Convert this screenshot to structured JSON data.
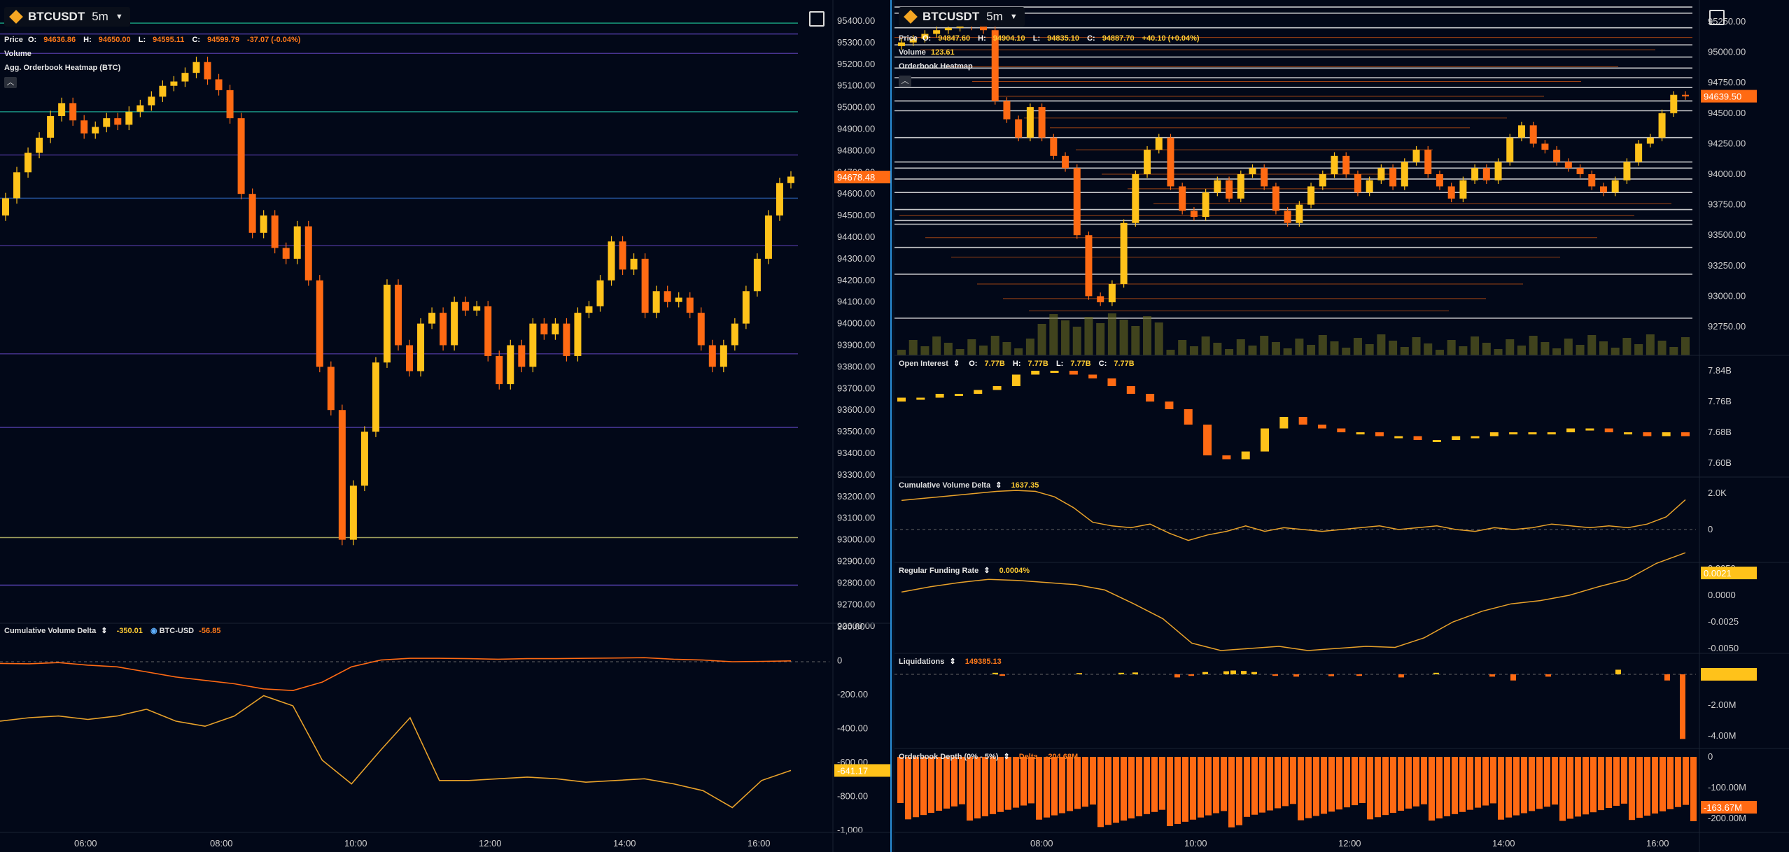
{
  "left": {
    "symbol": "BTCUSDT",
    "timeframe": "5m",
    "price_legend": {
      "label": "Price",
      "o_label": "O:",
      "o": "94636.86",
      "h_label": "H:",
      "h": "94650.00",
      "l_label": "L:",
      "l": "94595.11",
      "c_label": "C:",
      "c": "94599.79",
      "change": "-37.07 (-0.04%)"
    },
    "volume_label": "Volume",
    "heatmap_label": "Agg. Orderbook Heatmap (BTC)",
    "price_axis": [
      "95400.00",
      "95300.00",
      "95200.00",
      "95100.00",
      "95000.00",
      "94900.00",
      "94800.00",
      "94700.00",
      "94600.00",
      "94500.00",
      "94400.00",
      "94300.00",
      "94200.00",
      "94100.00",
      "94000.00",
      "93900.00",
      "93800.00",
      "93700.00",
      "93600.00",
      "93500.00",
      "93400.00",
      "93300.00",
      "93200.00",
      "93100.00",
      "93000.00",
      "92900.00",
      "92800.00",
      "92700.00",
      "92600.00"
    ],
    "current_price": "94678.48",
    "cvd_legend": {
      "label": "Cumulative Volume Delta",
      "v1": "-350.01",
      "v2_label": "BTC-USD",
      "v2": "-56.85"
    },
    "cvd_axis": [
      "200.00",
      "0",
      "-200.00",
      "-400.00",
      "-600.00",
      "-800.00",
      "-1,000"
    ],
    "cvd_current": "-641.17",
    "time_axis": [
      "06:00",
      "08:00",
      "10:00",
      "12:00",
      "14:00",
      "16:00"
    ]
  },
  "right": {
    "symbol": "BTCUSDT",
    "timeframe": "5m",
    "price_legend": {
      "label": "Price",
      "o_label": "O:",
      "o": "94847.60",
      "h_label": "H:",
      "h": "94904.10",
      "l_label": "L:",
      "l": "94835.10",
      "c_label": "C:",
      "c": "94887.70",
      "change": "+40.10 (+0.04%)"
    },
    "volume_legend": {
      "label": "Volume",
      "value": "123.61"
    },
    "heatmap_label": "Orderbook Heatmap",
    "price_axis": [
      "95250.00",
      "95000.00",
      "94750.00",
      "94500.00",
      "94250.00",
      "94000.00",
      "93750.00",
      "93500.00",
      "93250.00",
      "93000.00",
      "92750.00"
    ],
    "current_price": "94639.50",
    "oi_legend": {
      "label": "Open Interest",
      "o_label": "O:",
      "o": "7.77B",
      "h_label": "H:",
      "h": "7.77B",
      "l_label": "L:",
      "l": "7.77B",
      "c_label": "C:",
      "c": "7.77B"
    },
    "oi_axis": [
      "7.84B",
      "7.76B",
      "7.68B",
      "7.60B"
    ],
    "cvd_legend": {
      "label": "Cumulative Volume Delta",
      "value": "1637.35"
    },
    "cvd_axis": [
      "2.0K",
      "0"
    ],
    "funding_legend": {
      "label": "Regular Funding Rate",
      "value": "0.0004%"
    },
    "funding_axis": [
      "0.0050",
      "0.0000",
      "-0.0025",
      "-0.0050"
    ],
    "funding_current": "0.0021",
    "liq_legend": {
      "label": "Liquidations",
      "value": "149385.13"
    },
    "liq_axis": [
      "0",
      "-2.00M",
      "-4.00M"
    ],
    "depth_legend": {
      "label": "Orderbook Depth (0% - 5%)",
      "delta_label": "Delta",
      "value": "-204.68M"
    },
    "depth_axis": [
      "0",
      "-100.00M",
      "-200.00M"
    ],
    "depth_current": "-163.67M",
    "time_axis": [
      "08:00",
      "10:00",
      "12:00",
      "14:00",
      "16:00"
    ]
  },
  "colors": {
    "bg": "#020818",
    "up": "#ffc21a",
    "down": "#ff6a13",
    "cvd_line": "#e8a22a",
    "cvd_orange": "#ff6a13",
    "accent": "#2a8fd8"
  },
  "chart_data": [
    {
      "type": "candlestick",
      "title": "BTCUSDT 5m (left)",
      "x_ticks": [
        "06:00",
        "08:00",
        "10:00",
        "12:00",
        "14:00",
        "16:00"
      ],
      "ylim": [
        92600,
        95400
      ],
      "closes": [
        94580,
        94700,
        94790,
        94860,
        94960,
        95020,
        94940,
        94880,
        94910,
        94950,
        94920,
        94980,
        95010,
        95050,
        95100,
        95120,
        95160,
        95210,
        95130,
        95080,
        94950,
        94600,
        94420,
        94500,
        94350,
        94300,
        94450,
        94200,
        93800,
        93600,
        93000,
        93250,
        93500,
        93820,
        94180,
        93900,
        93780,
        94000,
        94050,
        93900,
        94100,
        94060,
        94080,
        93850,
        93720,
        93900,
        93800,
        94000,
        93950,
        94000,
        93850,
        94050,
        94080,
        94200,
        94380,
        94250,
        94300,
        94050,
        94150,
        94100,
        94120,
        94050,
        93900,
        93800,
        93900,
        94000,
        94150,
        94300,
        94500,
        94650,
        94680
      ]
    },
    {
      "type": "line",
      "title": "Cumulative Volume Delta (left)",
      "x_ticks": [
        "06:00",
        "08:00",
        "10:00",
        "12:00",
        "14:00",
        "16:00"
      ],
      "ylim": [
        -1000,
        200
      ],
      "series": [
        {
          "name": "BTC-USD",
          "values": [
            -10,
            -12,
            -5,
            -20,
            -30,
            -60,
            -90,
            -110,
            -130,
            -160,
            -170,
            -120,
            -30,
            10,
            20,
            20,
            18,
            15,
            18,
            18,
            20,
            22,
            24,
            15,
            10,
            0,
            2,
            5
          ]
        },
        {
          "name": "Cumulative Volume Delta",
          "values": [
            -350,
            -330,
            -320,
            -340,
            -320,
            -280,
            -350,
            -380,
            -320,
            -200,
            -260,
            -580,
            -720,
            -520,
            -330,
            -700,
            -700,
            -690,
            -680,
            -690,
            -710,
            -700,
            -690,
            -720,
            -760,
            -860,
            -700,
            -641
          ]
        }
      ]
    }
  ]
}
